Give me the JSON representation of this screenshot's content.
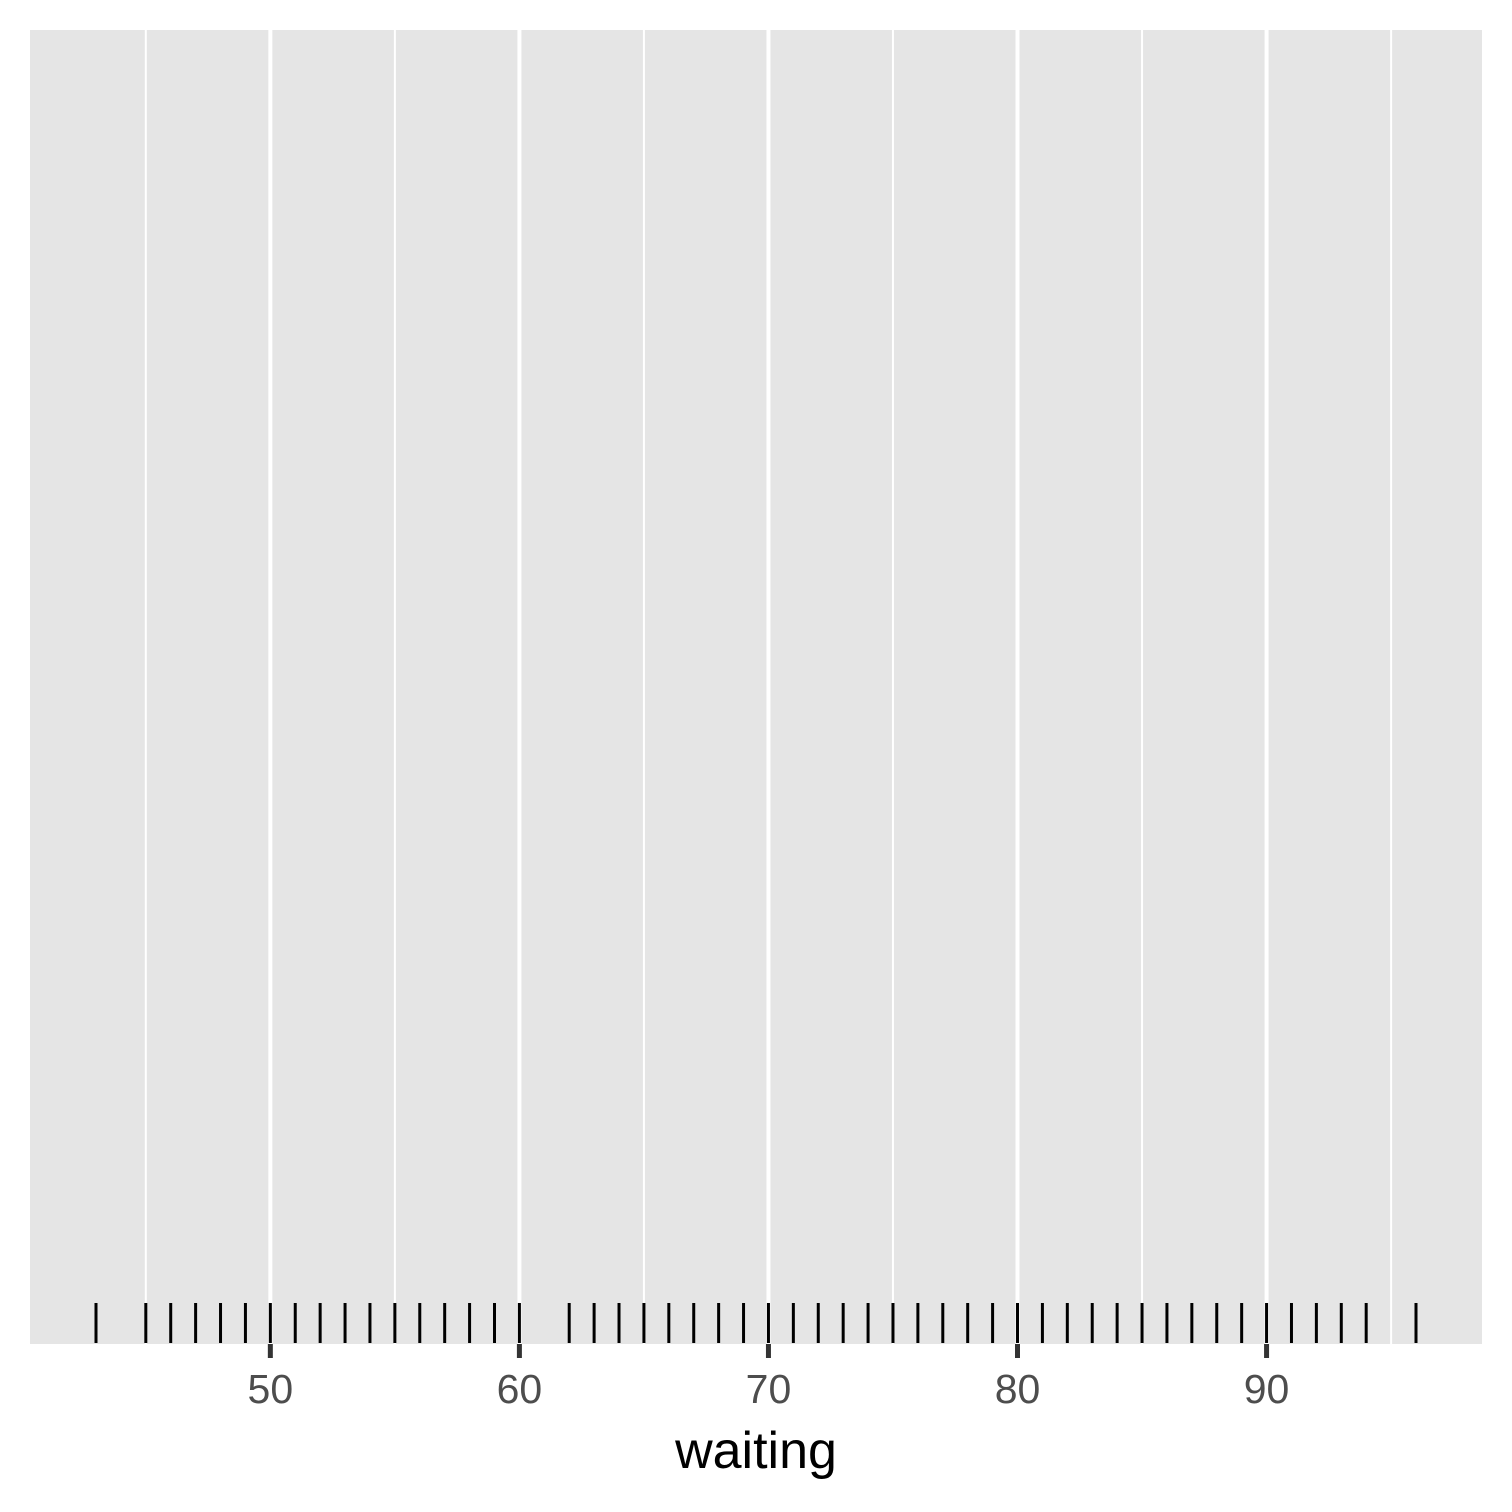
{
  "chart_data": {
    "type": "rug",
    "xlabel": "waiting",
    "ylabel": "",
    "title": "",
    "xlim": [
      40.35,
      98.65
    ],
    "x_ticks": [
      50,
      60,
      70,
      80,
      90
    ],
    "x_tick_labels": [
      "50",
      "60",
      "70",
      "80",
      "90"
    ],
    "x_minor_ticks": [
      45,
      55,
      65,
      75,
      85,
      95
    ],
    "grid": true,
    "values": [
      43,
      45,
      46,
      47,
      48,
      49,
      50,
      51,
      52,
      53,
      54,
      55,
      56,
      57,
      58,
      59,
      60,
      62,
      63,
      64,
      65,
      66,
      67,
      68,
      69,
      70,
      71,
      72,
      73,
      74,
      75,
      76,
      77,
      78,
      79,
      80,
      81,
      82,
      83,
      84,
      85,
      86,
      87,
      88,
      89,
      90,
      91,
      92,
      93,
      94,
      96
    ],
    "colors": {
      "panel_background": "#e5e5e5",
      "grid_major": "#ffffff",
      "grid_minor": "#ffffff",
      "rug": "#000000",
      "axis_tick": "#333333",
      "tick_label": "#4d4d4d",
      "axis_title": "#000000"
    }
  }
}
